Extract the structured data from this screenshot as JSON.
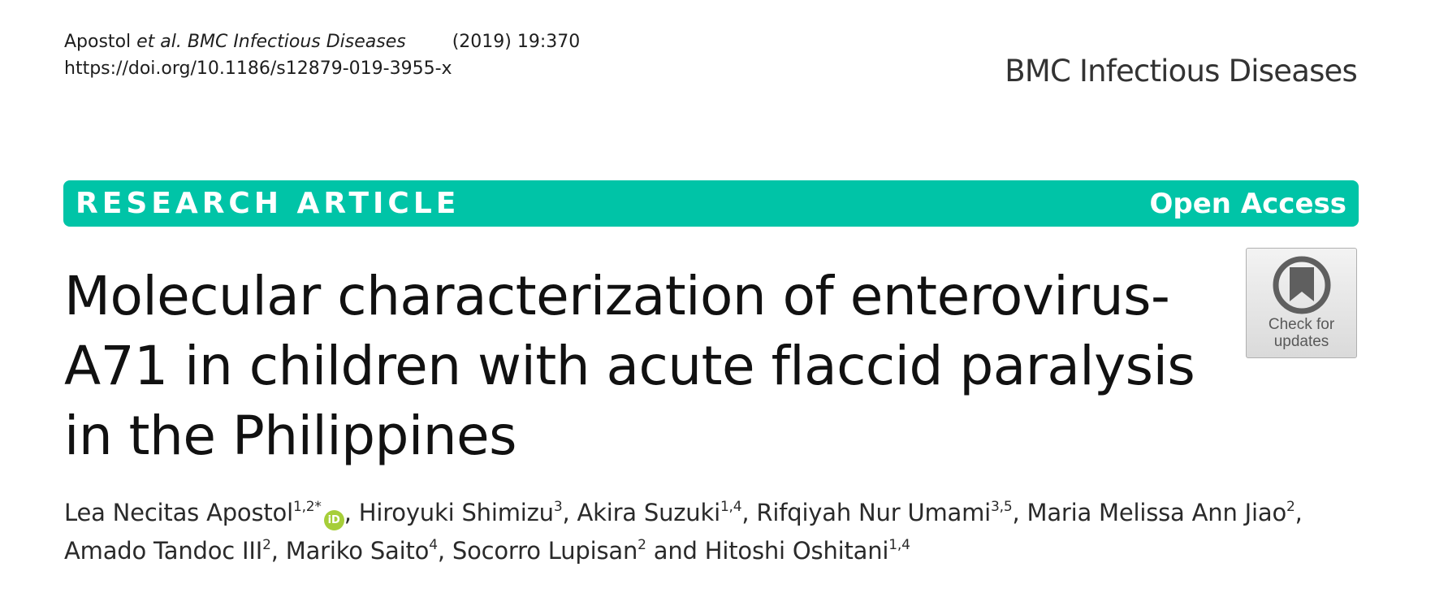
{
  "header": {
    "citation_author": "Apostol",
    "citation_etal": "et al.",
    "citation_journal": "BMC Infectious Diseases",
    "citation_issue": "(2019) 19:370",
    "doi": "https://doi.org/10.1186/s12879-019-3955-x",
    "journal_logo": "BMC Infectious Diseases"
  },
  "banner": {
    "article_type": "RESEARCH ARTICLE",
    "access": "Open Access",
    "color": "#00c4a7"
  },
  "title": "Molecular characterization of enterovirus-A71 in children with acute flaccid paralysis in the Philippines",
  "badge": {
    "line1": "Check for",
    "line2": "updates"
  },
  "orcid_icon": {
    "label": "iD",
    "color": "#a6ce39"
  },
  "authors": [
    {
      "name": "Lea Necitas Apostol",
      "aff": "1,2*"
    },
    {
      "name": "Hiroyuki Shimizu",
      "aff": "3"
    },
    {
      "name": "Akira Suzuki",
      "aff": "1,4"
    },
    {
      "name": "Rifqiyah Nur Umami",
      "aff": "3,5"
    },
    {
      "name": "Maria Melissa Ann Jiao",
      "aff": "2"
    },
    {
      "name": "Amado Tandoc III",
      "aff": "2"
    },
    {
      "name": "Mariko Saito",
      "aff": "4"
    },
    {
      "name": "Socorro Lupisan",
      "aff": "2"
    },
    {
      "name": "Hitoshi Oshitani",
      "aff": "1,4"
    }
  ],
  "authors_conjunction": "and"
}
